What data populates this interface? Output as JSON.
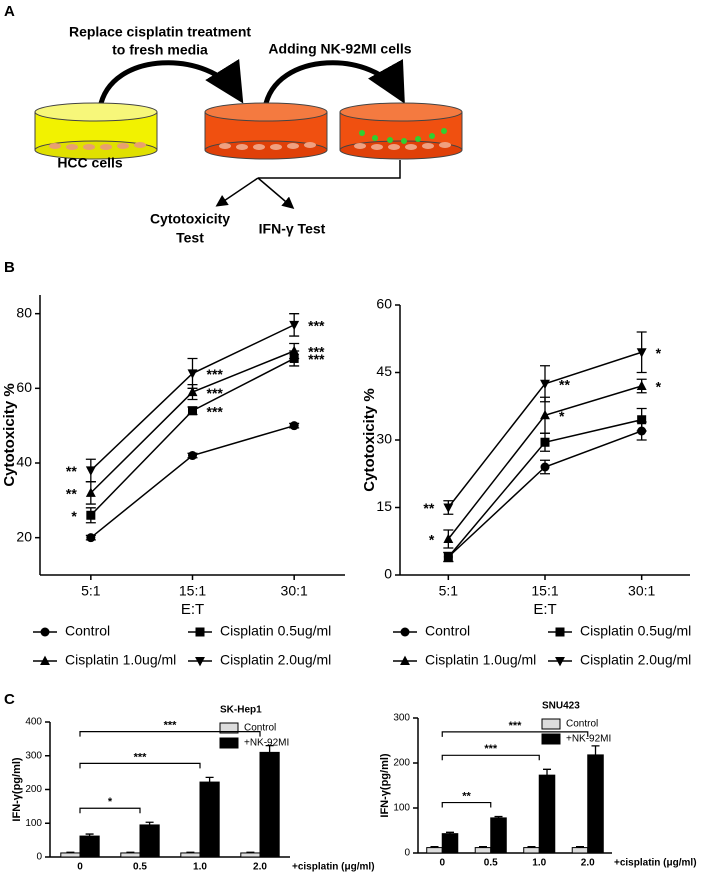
{
  "panel_labels": [
    "A",
    "B",
    "C"
  ],
  "diagram": {
    "step_1": [
      "Replace cisplatin treatment",
      "to fresh media"
    ],
    "step_2": "Adding NK-92MI cells",
    "start": "HCC cells",
    "tests": {
      "cytotoxicity": [
        "Cytotoxicity",
        "Test"
      ],
      "ifn": "IFN-γ Test"
    }
  },
  "chart_data": [
    {
      "type": "line",
      "y_label": "Cytotoxicity %",
      "x_label": "E:T",
      "categories": [
        "5:1",
        "15:1",
        "30:1"
      ],
      "ylim": [
        10,
        85
      ],
      "yticks": [
        20,
        40,
        60,
        80
      ],
      "legend": "below",
      "series": [
        {
          "name": "Control",
          "color": "#000000",
          "marker": "circle",
          "values": [
            20,
            42,
            50
          ],
          "errors": [
            0.6,
            0.6,
            0.6
          ]
        },
        {
          "name": "Cisplatin 0.5ug/ml",
          "color": "#000000",
          "marker": "square",
          "values": [
            26,
            54,
            68
          ],
          "errors": [
            2,
            1,
            2
          ],
          "stars": [
            "*",
            "***",
            "***"
          ]
        },
        {
          "name": "Cisplatin 1.0ug/ml",
          "color": "#000000",
          "marker": "triangle-up",
          "values": [
            32,
            59,
            70
          ],
          "errors": [
            3,
            2,
            2
          ],
          "stars": [
            "**",
            "***",
            "***"
          ]
        },
        {
          "name": "Cisplatin 2.0ug/ml",
          "color": "#000000",
          "marker": "triangle-down",
          "values": [
            38,
            64,
            77
          ],
          "errors": [
            3,
            4,
            3
          ],
          "stars": [
            "**",
            "***",
            "***"
          ]
        }
      ]
    },
    {
      "type": "line",
      "y_label": "Cytotoxicity %",
      "x_label": "E:T",
      "categories": [
        "5:1",
        "15:1",
        "30:1"
      ],
      "ylim": [
        0,
        60
      ],
      "yticks": [
        0,
        15,
        30,
        45,
        60
      ],
      "legend": "below",
      "series": [
        {
          "name": "Control",
          "color": "#000000",
          "marker": "circle",
          "values": [
            4,
            24,
            32
          ],
          "errors": [
            1,
            1.5,
            2
          ]
        },
        {
          "name": "Cisplatin 0.5ug/ml",
          "color": "#000000",
          "marker": "square",
          "values": [
            4,
            29.5,
            34.5
          ],
          "errors": [
            1,
            2,
            2.5
          ]
        },
        {
          "name": "Cisplatin 1.0ug/ml",
          "color": "#000000",
          "marker": "triangle-up",
          "values": [
            8,
            35.5,
            42
          ],
          "errors": [
            2,
            4,
            1.5
          ],
          "stars": [
            "*",
            "*",
            "*"
          ]
        },
        {
          "name": "Cisplatin 2.0ug/ml",
          "color": "#000000",
          "marker": "triangle-down",
          "values": [
            15,
            42.5,
            49.5
          ],
          "errors": [
            1.5,
            4,
            4.5
          ],
          "stars": [
            "**",
            "**",
            "*"
          ]
        }
      ]
    },
    {
      "type": "bar",
      "title": "SK-Hep1",
      "y_label": "IFN-γ(pg/ml)",
      "x_label": "+cisplatin (μg/ml)",
      "categories": [
        "0",
        "0.5",
        "1.0",
        "2.0"
      ],
      "ylim": [
        0,
        400
      ],
      "yticks": [
        0,
        100,
        200,
        300,
        400
      ],
      "legend": "upper right",
      "series": [
        {
          "name": "Control",
          "color": "#dddddd",
          "values": [
            12,
            12,
            12,
            12
          ],
          "errors": [
            2,
            2,
            2,
            2
          ]
        },
        {
          "name": "+NK-92MI",
          "color": "#000000",
          "values": [
            62,
            95,
            222,
            310
          ],
          "errors": [
            6,
            8,
            14,
            20
          ]
        }
      ],
      "comparisons": [
        {
          "between": [
            "0",
            "0.5"
          ],
          "label": "*"
        },
        {
          "between": [
            "0",
            "1.0"
          ],
          "label": "***"
        },
        {
          "between": [
            "0",
            "2.0"
          ],
          "label": "***"
        }
      ]
    },
    {
      "type": "bar",
      "title": "SNU423",
      "y_label": "IFN-γ(pg/ml)",
      "x_label": "+cisplatin (μg/ml)",
      "categories": [
        "0",
        "0.5",
        "1.0",
        "2.0"
      ],
      "ylim": [
        0,
        300
      ],
      "yticks": [
        0,
        100,
        200,
        300
      ],
      "legend": "upper right",
      "series": [
        {
          "name": "Control",
          "color": "#dddddd",
          "values": [
            12,
            12,
            12,
            12
          ],
          "errors": [
            2,
            2,
            2,
            2
          ]
        },
        {
          "name": "+NK-92MI",
          "color": "#000000",
          "values": [
            43,
            78,
            173,
            218
          ],
          "errors": [
            3,
            3,
            13,
            20
          ]
        }
      ],
      "comparisons": [
        {
          "between": [
            "0",
            "0.5"
          ],
          "label": "**"
        },
        {
          "between": [
            "0",
            "1.0"
          ],
          "label": "***"
        },
        {
          "between": [
            "0",
            "2.0"
          ],
          "label": "***"
        }
      ]
    }
  ]
}
